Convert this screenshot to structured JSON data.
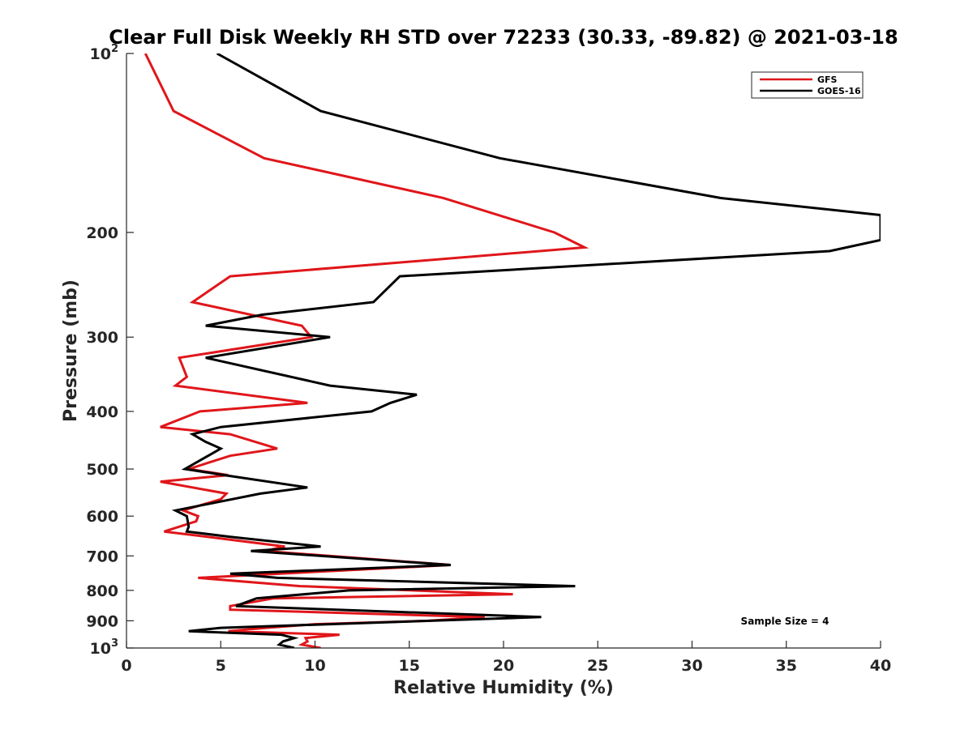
{
  "chart_data": {
    "type": "line",
    "title": "Clear Full Disk Weekly RH STD over 72233 (30.33, -89.82) @ 2021-03-18",
    "xlabel": "Relative Humidity (%)",
    "ylabel": "Pressure (mb)",
    "xlim": [
      0,
      40
    ],
    "ylim": [
      100,
      1000
    ],
    "yscale": "log",
    "y_reversed": true,
    "xticks": [
      0,
      5,
      10,
      15,
      20,
      25,
      30,
      35,
      40
    ],
    "yticks": [
      {
        "value": 100,
        "base": "10",
        "exp": "2"
      },
      {
        "value": 200,
        "label": "200"
      },
      {
        "value": 300,
        "label": "300"
      },
      {
        "value": 400,
        "label": "400"
      },
      {
        "value": 500,
        "label": "500"
      },
      {
        "value": 600,
        "label": "600"
      },
      {
        "value": 700,
        "label": "700"
      },
      {
        "value": 800,
        "label": "800"
      },
      {
        "value": 900,
        "label": "900"
      },
      {
        "value": 1000,
        "base": "10",
        "exp": "3"
      }
    ],
    "legend_position": "top-right",
    "annotation": "Sample Size = 4",
    "series": [
      {
        "name": "GFS",
        "color": "#e0161a",
        "points": [
          [
            1.0,
            100
          ],
          [
            2.5,
            125
          ],
          [
            7.3,
            150
          ],
          [
            16.8,
            175
          ],
          [
            22.7,
            200
          ],
          [
            24.3,
            212
          ],
          [
            5.5,
            237
          ],
          [
            3.5,
            262
          ],
          [
            9.3,
            287
          ],
          [
            9.8,
            300
          ],
          [
            2.8,
            325
          ],
          [
            3.2,
            350
          ],
          [
            2.6,
            362
          ],
          [
            9.6,
            387
          ],
          [
            3.9,
            400
          ],
          [
            1.8,
            425
          ],
          [
            5.5,
            437
          ],
          [
            8.0,
            462
          ],
          [
            5.5,
            475
          ],
          [
            3.3,
            500
          ],
          [
            5.4,
            512
          ],
          [
            1.8,
            525
          ],
          [
            5.3,
            550
          ],
          [
            5.0,
            562
          ],
          [
            3.0,
            587
          ],
          [
            3.8,
            600
          ],
          [
            3.7,
            612
          ],
          [
            2.0,
            637
          ],
          [
            4.3,
            650
          ],
          [
            8.4,
            675
          ],
          [
            7.3,
            687
          ],
          [
            17.2,
            725
          ],
          [
            3.8,
            762
          ],
          [
            9.2,
            787
          ],
          [
            20.5,
            812
          ],
          [
            7.8,
            825
          ],
          [
            5.5,
            850
          ],
          [
            5.5,
            862
          ],
          [
            19.0,
            887
          ],
          [
            16.0,
            900
          ],
          [
            10.0,
            912
          ],
          [
            7.4,
            925
          ],
          [
            5.4,
            937
          ],
          [
            11.3,
            950
          ],
          [
            9.5,
            962
          ],
          [
            9.6,
            975
          ],
          [
            9.3,
            987
          ],
          [
            10.3,
            1000
          ]
        ]
      },
      {
        "name": "GOES-16",
        "color": "#000000",
        "points": [
          [
            4.8,
            100
          ],
          [
            10.3,
            125
          ],
          [
            19.8,
            150
          ],
          [
            31.5,
            175
          ],
          [
            40.0,
            187
          ],
          [
            40.0,
            206
          ],
          [
            37.3,
            215
          ],
          [
            14.5,
            237
          ],
          [
            13.1,
            262
          ],
          [
            7.2,
            275
          ],
          [
            4.2,
            287
          ],
          [
            10.8,
            300
          ],
          [
            4.2,
            325
          ],
          [
            10.8,
            362
          ],
          [
            15.4,
            375
          ],
          [
            14.0,
            387
          ],
          [
            13.0,
            400
          ],
          [
            5.0,
            425
          ],
          [
            3.5,
            437
          ],
          [
            4.2,
            450
          ],
          [
            5.0,
            462
          ],
          [
            3.1,
            500
          ],
          [
            5.2,
            512
          ],
          [
            9.6,
            537
          ],
          [
            7.1,
            550
          ],
          [
            2.6,
            587
          ],
          [
            3.2,
            600
          ],
          [
            3.3,
            625
          ],
          [
            3.2,
            637
          ],
          [
            5.5,
            650
          ],
          [
            10.3,
            675
          ],
          [
            6.6,
            687
          ],
          [
            17.2,
            725
          ],
          [
            5.5,
            750
          ],
          [
            8.0,
            762
          ],
          [
            23.8,
            787
          ],
          [
            11.8,
            800
          ],
          [
            6.9,
            825
          ],
          [
            5.8,
            850
          ],
          [
            22.0,
            887
          ],
          [
            5.0,
            925
          ],
          [
            3.3,
            937
          ],
          [
            8.2,
            950
          ],
          [
            8.9,
            962
          ],
          [
            8.3,
            975
          ],
          [
            8.1,
            987
          ],
          [
            8.9,
            1000
          ]
        ]
      }
    ]
  }
}
